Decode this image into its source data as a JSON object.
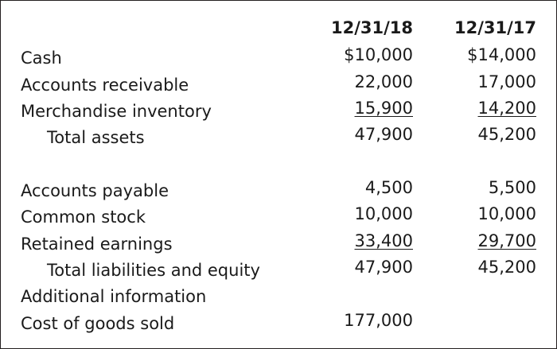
{
  "header": {
    "col1": "12/31/18",
    "col2": "12/31/17"
  },
  "rows": [
    {
      "label": "Cash",
      "v1": "$10,000",
      "v2": "$14,000"
    },
    {
      "label": "Accounts receivable",
      "v1": "22,000",
      "v2": "17,000"
    },
    {
      "label": "Merchandise inventory",
      "v1": "15,900",
      "v2": "14,200"
    },
    {
      "label": "Total assets",
      "v1": "47,900",
      "v2": "45,200"
    },
    {
      "label": "Accounts payable",
      "v1": "4,500",
      "v2": "5,500"
    },
    {
      "label": "Common stock",
      "v1": "10,000",
      "v2": "10,000"
    },
    {
      "label": "Retained earnings",
      "v1": "33,400",
      "v2": "29,700"
    },
    {
      "label": "Total liabilities and equity",
      "v1": "47,900",
      "v2": "45,200"
    },
    {
      "label": "Additional information"
    },
    {
      "label": "Cost of goods sold",
      "v1": "177,000"
    }
  ]
}
